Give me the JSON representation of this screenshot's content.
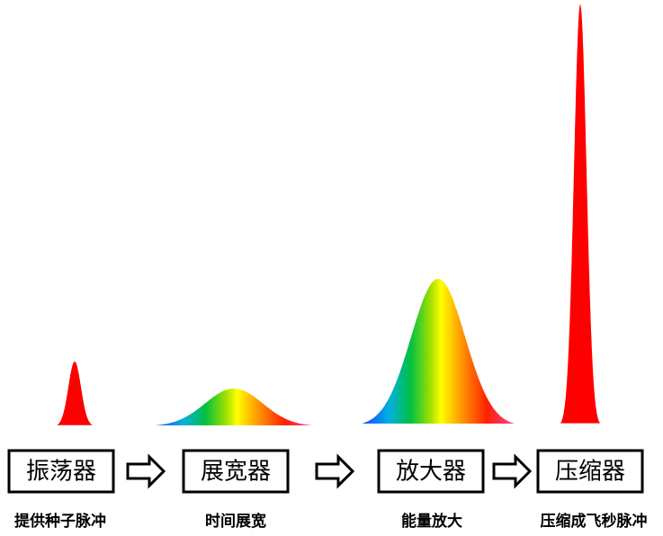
{
  "stages": [
    {
      "label": "振荡器",
      "caption": "提供种子脉冲"
    },
    {
      "label": "展宽器",
      "caption": "时间展宽"
    },
    {
      "label": "放大器",
      "caption": "能量放大"
    },
    {
      "label": "压缩器",
      "caption": "压缩成飞秒脉冲"
    }
  ]
}
